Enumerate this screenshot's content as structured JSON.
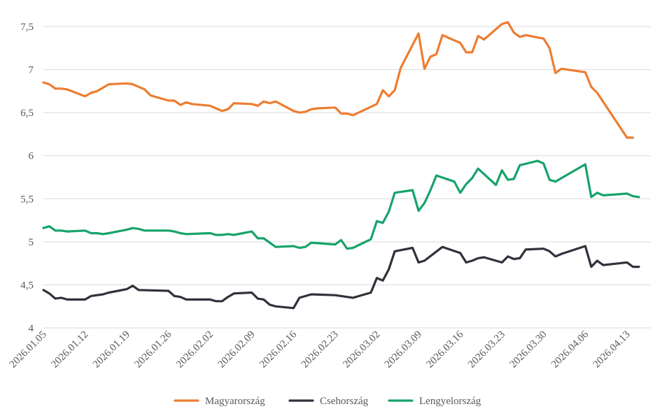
{
  "chart_data": {
    "type": "line",
    "title": "",
    "xlabel": "",
    "ylabel": "",
    "ylim": [
      4,
      7.5
    ],
    "yticks": [
      4,
      4.5,
      5,
      5.5,
      6,
      6.5,
      7,
      7.5
    ],
    "ytick_labels": [
      "4",
      "4,5",
      "5",
      "5,5",
      "6",
      "6,5",
      "7",
      "7,5"
    ],
    "x_start": 0,
    "x_end": 102,
    "xticks": [
      0,
      7,
      14,
      21,
      28,
      35,
      42,
      49,
      56,
      63,
      70,
      77,
      84,
      91,
      98
    ],
    "xtick_labels": [
      "2026.01.05",
      "2026.01.12",
      "2026.01.19",
      "2026.01.26",
      "2026.02.02",
      "2026.02.09",
      "2026.02.16",
      "2026.02.23",
      "2026.03.02",
      "2026.03.09",
      "2026.03.16",
      "2026.03.23",
      "2026.03.30",
      "2026.04.06",
      "2026.04.13"
    ],
    "grid": true,
    "legend_position": "bottom",
    "series": [
      {
        "name": "Magyarország",
        "color": "#ED7D31",
        "points": [
          [
            0,
            6.85
          ],
          [
            1,
            6.83
          ],
          [
            2,
            6.78
          ],
          [
            3,
            6.78
          ],
          [
            4,
            6.77
          ],
          [
            7,
            6.69
          ],
          [
            8,
            6.73
          ],
          [
            9,
            6.75
          ],
          [
            11,
            6.83
          ],
          [
            14,
            6.84
          ],
          [
            15,
            6.83
          ],
          [
            16,
            6.8
          ],
          [
            17,
            6.77
          ],
          [
            18,
            6.7
          ],
          [
            21,
            6.64
          ],
          [
            22,
            6.64
          ],
          [
            23,
            6.59
          ],
          [
            24,
            6.62
          ],
          [
            25,
            6.6
          ],
          [
            28,
            6.58
          ],
          [
            29,
            6.55
          ],
          [
            30,
            6.52
          ],
          [
            31,
            6.54
          ],
          [
            32,
            6.61
          ],
          [
            35,
            6.6
          ],
          [
            36,
            6.58
          ],
          [
            37,
            6.63
          ],
          [
            38,
            6.61
          ],
          [
            39,
            6.63
          ],
          [
            42,
            6.52
          ],
          [
            43,
            6.5
          ],
          [
            44,
            6.51
          ],
          [
            45,
            6.54
          ],
          [
            46,
            6.55
          ],
          [
            49,
            6.56
          ],
          [
            50,
            6.49
          ],
          [
            51,
            6.49
          ],
          [
            52,
            6.47
          ],
          [
            56,
            6.6
          ],
          [
            57,
            6.76
          ],
          [
            58,
            6.69
          ],
          [
            59,
            6.76
          ],
          [
            60,
            7.02
          ],
          [
            63,
            7.42
          ],
          [
            64,
            7.01
          ],
          [
            65,
            7.15
          ],
          [
            66,
            7.18
          ],
          [
            67,
            7.4
          ],
          [
            70,
            7.31
          ],
          [
            71,
            7.2
          ],
          [
            72,
            7.2
          ],
          [
            73,
            7.39
          ],
          [
            74,
            7.35
          ],
          [
            77,
            7.53
          ],
          [
            78,
            7.55
          ],
          [
            79,
            7.43
          ],
          [
            80,
            7.38
          ],
          [
            81,
            7.4
          ],
          [
            84,
            7.36
          ],
          [
            85,
            7.25
          ],
          [
            86,
            6.96
          ],
          [
            87,
            7.01
          ],
          [
            91,
            6.97
          ],
          [
            92,
            6.8
          ],
          [
            93,
            6.73
          ],
          [
            98,
            6.21
          ],
          [
            99,
            6.21
          ]
        ]
      },
      {
        "name": "Csehország",
        "color": "#2F323B",
        "points": [
          [
            0,
            4.44
          ],
          [
            1,
            4.4
          ],
          [
            2,
            4.34
          ],
          [
            3,
            4.35
          ],
          [
            4,
            4.33
          ],
          [
            7,
            4.33
          ],
          [
            8,
            4.37
          ],
          [
            9,
            4.38
          ],
          [
            10,
            4.39
          ],
          [
            11,
            4.41
          ],
          [
            14,
            4.45
          ],
          [
            15,
            4.49
          ],
          [
            16,
            4.44
          ],
          [
            21,
            4.43
          ],
          [
            22,
            4.37
          ],
          [
            23,
            4.36
          ],
          [
            24,
            4.33
          ],
          [
            28,
            4.33
          ],
          [
            29,
            4.31
          ],
          [
            30,
            4.31
          ],
          [
            31,
            4.36
          ],
          [
            32,
            4.4
          ],
          [
            35,
            4.41
          ],
          [
            36,
            4.34
          ],
          [
            37,
            4.33
          ],
          [
            38,
            4.27
          ],
          [
            39,
            4.25
          ],
          [
            42,
            4.23
          ],
          [
            43,
            4.35
          ],
          [
            45,
            4.39
          ],
          [
            49,
            4.38
          ],
          [
            52,
            4.35
          ],
          [
            55,
            4.41
          ],
          [
            56,
            4.58
          ],
          [
            57,
            4.55
          ],
          [
            58,
            4.68
          ],
          [
            59,
            4.89
          ],
          [
            62,
            4.93
          ],
          [
            63,
            4.76
          ],
          [
            64,
            4.78
          ],
          [
            67,
            4.94
          ],
          [
            70,
            4.87
          ],
          [
            71,
            4.76
          ],
          [
            72,
            4.78
          ],
          [
            73,
            4.81
          ],
          [
            74,
            4.82
          ],
          [
            77,
            4.76
          ],
          [
            78,
            4.83
          ],
          [
            79,
            4.8
          ],
          [
            80,
            4.81
          ],
          [
            81,
            4.91
          ],
          [
            84,
            4.92
          ],
          [
            85,
            4.89
          ],
          [
            86,
            4.83
          ],
          [
            87,
            4.86
          ],
          [
            91,
            4.95
          ],
          [
            92,
            4.71
          ],
          [
            93,
            4.78
          ],
          [
            94,
            4.73
          ],
          [
            98,
            4.76
          ],
          [
            99,
            4.71
          ],
          [
            100,
            4.71
          ]
        ]
      },
      {
        "name": "Lengyelország",
        "color": "#17A36B",
        "points": [
          [
            0,
            5.16
          ],
          [
            1,
            5.18
          ],
          [
            2,
            5.13
          ],
          [
            3,
            5.13
          ],
          [
            4,
            5.12
          ],
          [
            7,
            5.13
          ],
          [
            8,
            5.1
          ],
          [
            9,
            5.1
          ],
          [
            10,
            5.09
          ],
          [
            11,
            5.1
          ],
          [
            14,
            5.14
          ],
          [
            15,
            5.16
          ],
          [
            16,
            5.15
          ],
          [
            17,
            5.13
          ],
          [
            21,
            5.13
          ],
          [
            22,
            5.12
          ],
          [
            23,
            5.1
          ],
          [
            24,
            5.09
          ],
          [
            28,
            5.1
          ],
          [
            29,
            5.08
          ],
          [
            30,
            5.08
          ],
          [
            31,
            5.09
          ],
          [
            32,
            5.08
          ],
          [
            35,
            5.12
          ],
          [
            36,
            5.04
          ],
          [
            37,
            5.04
          ],
          [
            38,
            4.99
          ],
          [
            39,
            4.94
          ],
          [
            42,
            4.95
          ],
          [
            43,
            4.93
          ],
          [
            44,
            4.94
          ],
          [
            45,
            4.99
          ],
          [
            49,
            4.97
          ],
          [
            50,
            5.02
          ],
          [
            51,
            4.92
          ],
          [
            52,
            4.93
          ],
          [
            55,
            5.03
          ],
          [
            56,
            5.24
          ],
          [
            57,
            5.22
          ],
          [
            58,
            5.35
          ],
          [
            59,
            5.57
          ],
          [
            62,
            5.6
          ],
          [
            63,
            5.36
          ],
          [
            64,
            5.45
          ],
          [
            65,
            5.6
          ],
          [
            66,
            5.77
          ],
          [
            69,
            5.7
          ],
          [
            70,
            5.57
          ],
          [
            71,
            5.67
          ],
          [
            72,
            5.74
          ],
          [
            73,
            5.85
          ],
          [
            76,
            5.66
          ],
          [
            77,
            5.83
          ],
          [
            78,
            5.72
          ],
          [
            79,
            5.73
          ],
          [
            80,
            5.89
          ],
          [
            83,
            5.94
          ],
          [
            84,
            5.91
          ],
          [
            85,
            5.72
          ],
          [
            86,
            5.7
          ],
          [
            91,
            5.9
          ],
          [
            92,
            5.52
          ],
          [
            93,
            5.57
          ],
          [
            94,
            5.54
          ],
          [
            98,
            5.56
          ],
          [
            99,
            5.53
          ],
          [
            100,
            5.52
          ]
        ]
      }
    ]
  }
}
